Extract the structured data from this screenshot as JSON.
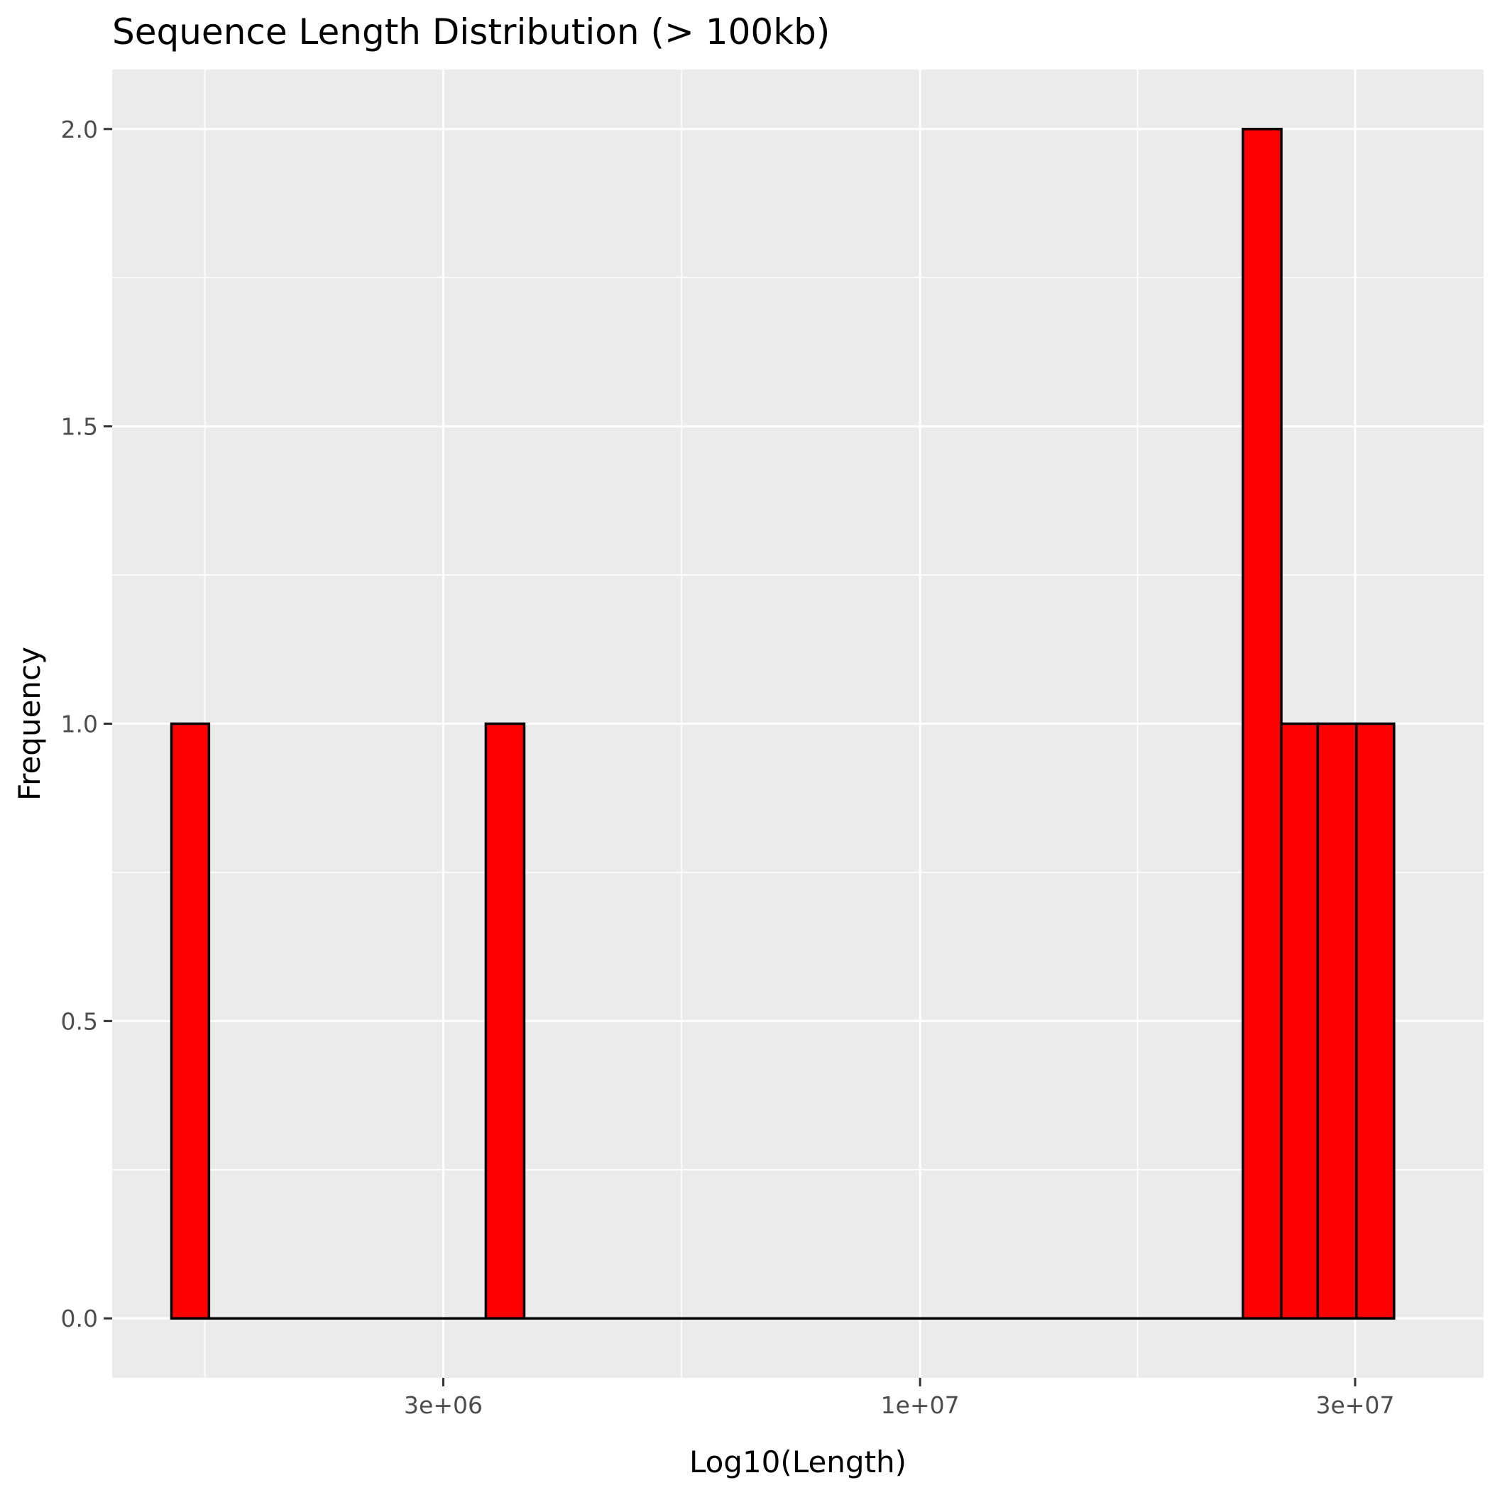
{
  "chart_data": {
    "type": "bar",
    "title": "Sequence Length Distribution (> 100kb)",
    "xlabel": "Log10(Length)",
    "ylabel": "Frequency",
    "x_scale": "log10",
    "xlim": [
      1300000,
      41500000
    ],
    "ylim": [
      -0.1,
      2.1
    ],
    "x_ticks": [
      {
        "value": 3000000,
        "label": "3e+06"
      },
      {
        "value": 10000000,
        "label": "1e+07"
      },
      {
        "value": 30000000,
        "label": "3e+07"
      }
    ],
    "y_ticks": [
      {
        "value": 0,
        "label": "0.0"
      },
      {
        "value": 0.5,
        "label": "0.5"
      },
      {
        "value": 1,
        "label": "1.0"
      },
      {
        "value": 1.5,
        "label": "1.5"
      },
      {
        "value": 2,
        "label": "2.0"
      }
    ],
    "bins": [
      {
        "x_min": 1510000,
        "x_max": 1660000,
        "count": 1
      },
      {
        "x_min": 3340000,
        "x_max": 3680000,
        "count": 1
      },
      {
        "x_min": 22600000,
        "x_max": 24900000,
        "count": 2
      },
      {
        "x_min": 24900000,
        "x_max": 27300000,
        "count": 1
      },
      {
        "x_min": 27300000,
        "x_max": 30100000,
        "count": 1
      },
      {
        "x_min": 30100000,
        "x_max": 33100000,
        "count": 1
      }
    ],
    "baseline_range": [
      1510000,
      33100000
    ],
    "grid": true,
    "legend": "none",
    "colors": {
      "bar_fill": "#ff0000",
      "bar_stroke": "#000000",
      "panel_background": "#ebebeb",
      "grid_line": "#ffffff",
      "tick_label": "#4d4d4d"
    }
  }
}
